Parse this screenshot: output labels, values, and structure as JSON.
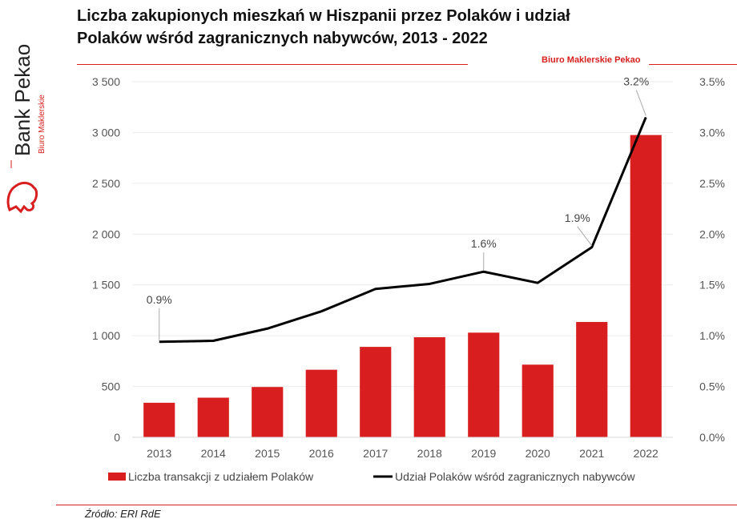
{
  "header": {
    "title_line1": "Liczba zakupionych mieszkań w Hiszpanii przez Polaków i udział",
    "title_line2": "Polaków wśród zagranicznych nabywców, 2013 - 2022",
    "subtitle": "Biuro Maklerskie Pekao"
  },
  "logo": {
    "brand": "Bank Pekao",
    "sub": "Biuro Maklerskie"
  },
  "footer": {
    "source": "Źródło: ERI RdE"
  },
  "colors": {
    "bar": "#d81e1e",
    "line": "#000000",
    "accent": "#d81e1e"
  },
  "chart_data": {
    "type": "bar",
    "categories": [
      "2013",
      "2014",
      "2015",
      "2016",
      "2017",
      "2018",
      "2019",
      "2020",
      "2021",
      "2022"
    ],
    "y_left_ticks": [
      "0",
      "500",
      "1 000",
      "1 500",
      "2 000",
      "2 500",
      "3 000",
      "3 500"
    ],
    "y_right_ticks": [
      "0.0%",
      "0.5%",
      "1.0%",
      "1.5%",
      "2.0%",
      "2.5%",
      "3.0%",
      "3.5%"
    ],
    "ylim_left": [
      0,
      3500
    ],
    "ylim_right": [
      0,
      3.5
    ],
    "grid": true,
    "legend_position": "bottom",
    "series": [
      {
        "name": "Liczba transakcji z udziałem Polaków",
        "kind": "bar",
        "values": [
          340,
          390,
          495,
          665,
          890,
          985,
          1030,
          715,
          1135,
          2975
        ]
      },
      {
        "name": "Udział Polaków wśród zagranicznych nabywców",
        "kind": "line",
        "values": [
          0.94,
          0.95,
          1.07,
          1.24,
          1.46,
          1.51,
          1.63,
          1.52,
          1.87,
          3.15
        ]
      }
    ],
    "annotations": [
      {
        "index": 0,
        "text": "0.9%"
      },
      {
        "index": 6,
        "text": "1.6%"
      },
      {
        "index": 8,
        "text": "1.9%"
      },
      {
        "index": 9,
        "text": "3.2%"
      }
    ]
  }
}
